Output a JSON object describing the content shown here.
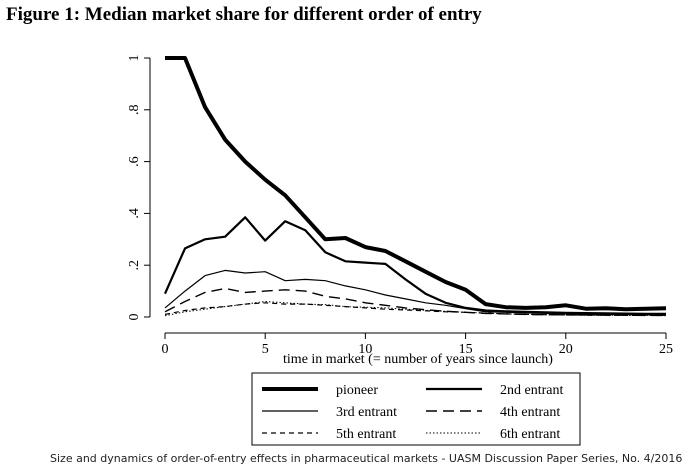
{
  "figure": {
    "title": "Figure 1: Median market share for different order of entry",
    "caption": "Size and dynamics of order-of-entry effects in pharmaceutical markets - UASM Discussion Paper Series, No. 4/2016"
  },
  "chart_data": {
    "type": "line",
    "title": "Figure 1: Median market share for different order of entry",
    "xlabel": "time in market (= number of years since launch)",
    "ylabel": "",
    "xlim": [
      0,
      25
    ],
    "ylim": [
      0,
      1
    ],
    "x_ticks": [
      0,
      5,
      10,
      15,
      20,
      25
    ],
    "y_ticks": [
      0,
      0.2,
      0.4,
      0.6,
      0.8,
      1
    ],
    "y_tick_labels": [
      "0",
      ".2",
      ".4",
      ".6",
      ".8",
      "1"
    ],
    "grid": false,
    "legend_position": "bottom",
    "x": [
      0,
      1,
      2,
      3,
      4,
      5,
      6,
      7,
      8,
      9,
      10,
      11,
      12,
      13,
      14,
      15,
      16,
      17,
      18,
      19,
      20,
      21,
      22,
      23,
      24,
      25
    ],
    "series": [
      {
        "name": "pioneer",
        "style": "thick-solid",
        "values": [
          1.0,
          1.0,
          0.81,
          0.685,
          0.6,
          0.53,
          0.47,
          0.385,
          0.3,
          0.305,
          0.27,
          0.255,
          0.215,
          0.175,
          0.135,
          0.105,
          0.05,
          0.038,
          0.035,
          0.038,
          0.045,
          0.032,
          0.034,
          0.03,
          0.032,
          0.034
        ]
      },
      {
        "name": "2nd entrant",
        "style": "medium-solid",
        "values": [
          0.09,
          0.265,
          0.3,
          0.31,
          0.385,
          0.295,
          0.37,
          0.335,
          0.25,
          0.215,
          0.21,
          0.205,
          0.145,
          0.09,
          0.055,
          0.035,
          0.025,
          0.022,
          0.02,
          0.018,
          0.016,
          0.015,
          0.014,
          0.013,
          0.012,
          0.012
        ]
      },
      {
        "name": "3rd entrant",
        "style": "thin-solid",
        "values": [
          0.035,
          0.1,
          0.16,
          0.18,
          0.17,
          0.175,
          0.14,
          0.145,
          0.14,
          0.12,
          0.105,
          0.085,
          0.07,
          0.055,
          0.045,
          0.032,
          0.02,
          0.018,
          0.016,
          0.014,
          0.012,
          0.01,
          0.01,
          0.009,
          0.008,
          0.008
        ]
      },
      {
        "name": "4th entrant",
        "style": "long-dash",
        "values": [
          0.02,
          0.06,
          0.095,
          0.11,
          0.095,
          0.1,
          0.105,
          0.1,
          0.08,
          0.07,
          0.055,
          0.045,
          0.035,
          0.028,
          0.022,
          0.018,
          0.014,
          0.012,
          0.01,
          0.009,
          0.008,
          0.008,
          0.007,
          0.007,
          0.006,
          0.006
        ]
      },
      {
        "name": "5th entrant",
        "style": "short-dash",
        "values": [
          0.01,
          0.025,
          0.035,
          0.04,
          0.05,
          0.055,
          0.05,
          0.05,
          0.045,
          0.04,
          0.035,
          0.03,
          0.027,
          0.024,
          0.02,
          0.018,
          0.015,
          0.012,
          0.01,
          0.009,
          0.008,
          0.007,
          0.007,
          0.006,
          0.006,
          0.006
        ]
      },
      {
        "name": "6th entrant",
        "style": "dotted",
        "values": [
          0.005,
          0.02,
          0.03,
          0.04,
          0.05,
          0.06,
          0.055,
          0.05,
          0.048,
          0.04,
          0.038,
          0.035,
          0.03,
          0.026,
          0.022,
          0.018,
          0.015,
          0.012,
          0.01,
          0.009,
          0.008,
          0.007,
          0.007,
          0.006,
          0.006,
          0.005
        ]
      }
    ]
  }
}
